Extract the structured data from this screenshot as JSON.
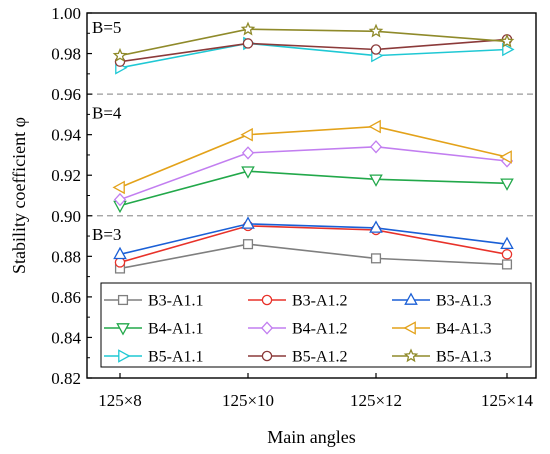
{
  "chart_data": {
    "type": "line",
    "xlabel": "Main angles",
    "ylabel": "Stability coefficient φ",
    "categories": [
      "125×8",
      "125×10",
      "125×12",
      "125×14"
    ],
    "ylim": [
      0.82,
      1.0
    ],
    "yticks": [
      "0.82",
      "0.84",
      "0.86",
      "0.88",
      "0.90",
      "0.92",
      "0.94",
      "0.96",
      "0.98",
      "1.00"
    ],
    "reference_lines": [
      0.9,
      0.96
    ],
    "group_labels": [
      {
        "text": "B=5",
        "y": 0.993
      },
      {
        "text": "B=4",
        "y": 0.951
      },
      {
        "text": "B=3",
        "y": 0.891
      }
    ],
    "legend_position": "bottom-center",
    "series": [
      {
        "name": "B3-A1.1",
        "color": "#7f7f7f",
        "marker": "square",
        "values": [
          0.874,
          0.886,
          0.879,
          0.876
        ]
      },
      {
        "name": "B3-A1.2",
        "color": "#e8322a",
        "marker": "circle",
        "values": [
          0.877,
          0.895,
          0.893,
          0.881
        ]
      },
      {
        "name": "B3-A1.3",
        "color": "#1a5fd6",
        "marker": "triangle-up",
        "values": [
          0.881,
          0.896,
          0.894,
          0.886
        ]
      },
      {
        "name": "B4-A1.1",
        "color": "#22a84a",
        "marker": "triangle-down",
        "values": [
          0.905,
          0.922,
          0.918,
          0.916
        ]
      },
      {
        "name": "B4-A1.2",
        "color": "#c27ef0",
        "marker": "diamond",
        "values": [
          0.908,
          0.931,
          0.934,
          0.927
        ]
      },
      {
        "name": "B4-A1.3",
        "color": "#e3a21a",
        "marker": "triangle-left",
        "values": [
          0.914,
          0.94,
          0.944,
          0.929
        ]
      },
      {
        "name": "B5-A1.1",
        "color": "#1fc8d4",
        "marker": "triangle-right",
        "values": [
          0.973,
          0.985,
          0.979,
          0.982
        ]
      },
      {
        "name": "B5-A1.2",
        "color": "#8b3a3a",
        "marker": "circle",
        "values": [
          0.976,
          0.985,
          0.982,
          0.987
        ]
      },
      {
        "name": "B5-A1.3",
        "color": "#8f8a2a",
        "marker": "star",
        "values": [
          0.979,
          0.992,
          0.991,
          0.986
        ]
      }
    ]
  }
}
